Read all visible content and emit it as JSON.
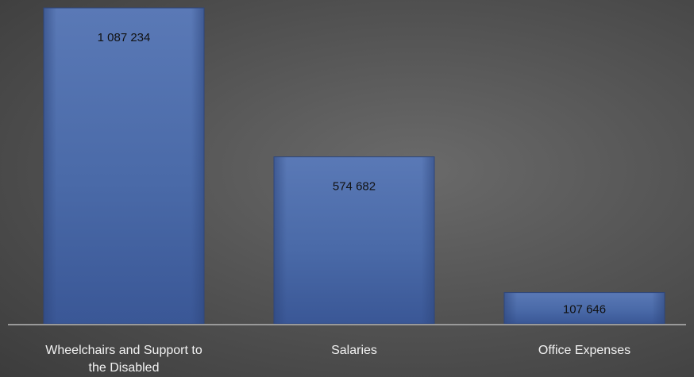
{
  "chart_data": {
    "type": "bar",
    "categories": [
      "Wheelchairs and Support to the Disabled",
      "Salaries",
      "Office Expenses"
    ],
    "category_label_lines": [
      [
        "Wheelchairs and Support to",
        "the Disabled"
      ],
      [
        "Salaries"
      ],
      [
        "Office Expenses"
      ]
    ],
    "values": [
      1087234,
      574682,
      107646
    ],
    "value_labels": [
      "1 087 234",
      "574 682",
      "107 646"
    ],
    "title": "",
    "xlabel": "",
    "ylabel": "",
    "ylim": [
      0,
      1087234
    ],
    "grid": false,
    "legend": "none"
  },
  "colors": {
    "bar_fill": "#4a6aa8",
    "bar_dark": "#2e467c",
    "baseline": "#9a9a9a",
    "value_text": "#111111",
    "label_text": "#f2f2f2"
  }
}
